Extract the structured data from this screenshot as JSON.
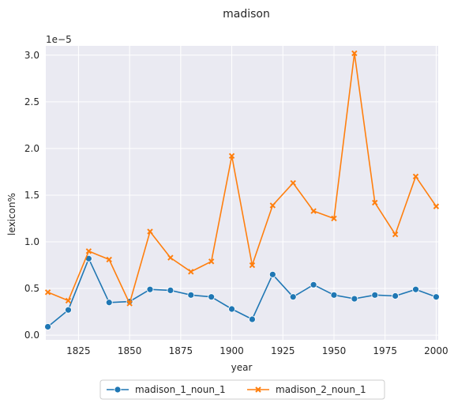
{
  "chart_data": {
    "type": "line",
    "title": "madison",
    "xlabel": "year",
    "ylabel": "lexicon%",
    "y_scale_label": "1e−5",
    "xlim": [
      1809,
      2001
    ],
    "ylim": [
      -0.05,
      3.1
    ],
    "x_ticks": [
      1825,
      1850,
      1875,
      1900,
      1925,
      1950,
      1975,
      2000
    ],
    "x_tick_labels": [
      "1825",
      "1850",
      "1875",
      "1900",
      "1925",
      "1950",
      "1975",
      "2000"
    ],
    "y_ticks": [
      0.0,
      0.5,
      1.0,
      1.5,
      2.0,
      2.5,
      3.0
    ],
    "y_tick_labels": [
      "0.0",
      "0.5",
      "1.0",
      "1.5",
      "2.0",
      "2.5",
      "3.0"
    ],
    "grid": true,
    "legend_position": "bottom-center",
    "x": [
      1810,
      1820,
      1830,
      1840,
      1850,
      1860,
      1870,
      1880,
      1890,
      1900,
      1910,
      1920,
      1930,
      1940,
      1950,
      1960,
      1970,
      1980,
      1990,
      2000
    ],
    "series": [
      {
        "name": "madison_1_noun_1",
        "color": "#1f77b4",
        "marker": "circle",
        "values": [
          0.09,
          0.27,
          0.82,
          0.35,
          0.36,
          0.49,
          0.48,
          0.43,
          0.41,
          0.28,
          0.17,
          0.65,
          0.41,
          0.54,
          0.43,
          0.39,
          0.43,
          0.42,
          0.49,
          0.41
        ]
      },
      {
        "name": "madison_2_noun_1",
        "color": "#ff7f0e",
        "marker": "x",
        "values": [
          0.46,
          0.37,
          0.9,
          0.81,
          0.34,
          1.11,
          0.83,
          0.68,
          0.79,
          1.92,
          0.75,
          1.39,
          1.63,
          1.33,
          1.25,
          3.02,
          1.42,
          1.08,
          1.7,
          1.38
        ]
      }
    ]
  },
  "colors": {
    "plot_background": "#eaeaf2",
    "grid": "#ffffff",
    "text": "#262626"
  }
}
